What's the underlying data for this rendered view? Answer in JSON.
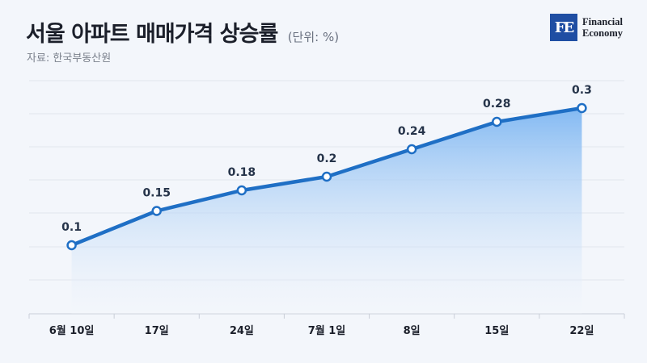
{
  "title": "서울 아파트 매매가격 상승률",
  "unit": "(단위: %)",
  "source": "자료: 한국부동산원",
  "logo": {
    "mark": "FE",
    "line1": "Financial",
    "line2": "Economy"
  },
  "colors": {
    "line": "#1f6fc5",
    "area_top": "#7db6f2",
    "area_bottom": "#f3f6fb",
    "marker_fill": "#ffffff",
    "grid": "#e2e6ee",
    "label": "#26344a"
  },
  "chart_data": {
    "type": "area",
    "categories": [
      "6월 10일",
      "17일",
      "24일",
      "7월 1일",
      "8일",
      "15일",
      "22일"
    ],
    "values": [
      0.1,
      0.15,
      0.18,
      0.2,
      0.24,
      0.28,
      0.3
    ],
    "data_labels": [
      "0.1",
      "0.15",
      "0.18",
      "0.2",
      "0.24",
      "0.28",
      "0.3"
    ],
    "ylim": [
      0,
      0.34
    ],
    "grid": true,
    "markers": "hollow circle"
  }
}
